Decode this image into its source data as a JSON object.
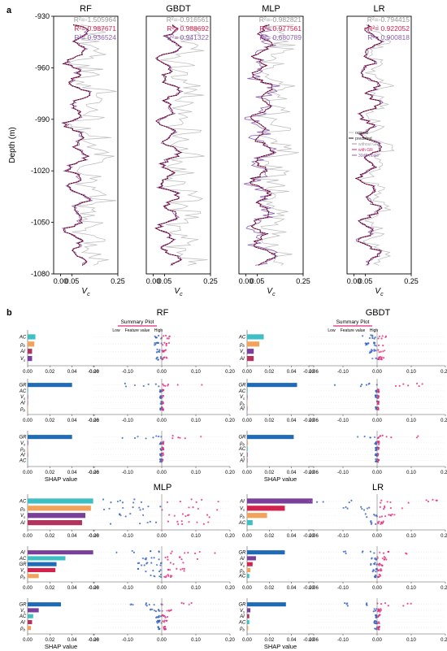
{
  "panel_labels": [
    "a",
    "b"
  ],
  "colors": {
    "original": "#c0c0c0",
    "predicted": "#111111",
    "without_gr": "#9a9a9a",
    "with_gr": "#d7266c",
    "noise": "#8a5fb0",
    "r2_gray": "#9a9a9a",
    "r2_red": "#d2234f",
    "r2_purple": "#8a5fb0",
    "shap_teal": "#3dbfc4",
    "shap_orange": "#f2a25a",
    "shap_maroon": "#b0345e",
    "shap_purple": "#7a3f9a",
    "shap_blue": "#1f6bb5",
    "shap_red": "#d2234f",
    "shap_low": "#2f5fbf",
    "shap_high": "#e0287a"
  },
  "chart_data": [
    {
      "type": "line",
      "panel": "a",
      "ylabel": "Depth (m)",
      "xlabel": "V_c",
      "ylim": [
        -1080,
        -930
      ],
      "xlim": [
        -0.03,
        0.25
      ],
      "yticks": [
        -930,
        -960,
        -990,
        -1020,
        -1050,
        -1080
      ],
      "xticks": [
        0.0,
        0.05,
        0.25
      ],
      "xtick_labels": [
        "0.00",
        "0.05",
        "0.25"
      ],
      "legend": {
        "placement": "right of LR panel",
        "entries": [
          "original",
          "predicted",
          "without GR",
          "with GR",
          "30dB noise"
        ]
      },
      "subplots": [
        {
          "title": "RF",
          "r2": [
            "R²=-1.505964",
            "R²= 0.987671",
            "R²= 0.936524"
          ]
        },
        {
          "title": "GBDT",
          "r2": [
            "R²=-0.916561",
            "R²= 0.988692",
            "R²= 0.941322"
          ]
        },
        {
          "title": "MLP",
          "r2": [
            "R²=-0.982821",
            "R²= 0.977561",
            "R²= 0.680789"
          ]
        },
        {
          "title": "LR",
          "r2": [
            "R²=-0.794415",
            "R²= 0.922052",
            "R²= 0.900818"
          ]
        }
      ]
    },
    {
      "type": "bar",
      "panel": "b",
      "xlabel": "SHAP value",
      "summary_title": "Summary Plot",
      "summary_axis": [
        "Low",
        "Feature value",
        "High"
      ],
      "bar_xticks": [
        "0.00",
        "0.02",
        "0.04",
        "0.06"
      ],
      "beeswarm_xticks": [
        "-0.20",
        "-0.10",
        "0.00",
        "0.10",
        "0.20"
      ],
      "models": [
        {
          "title": "RF",
          "rows": [
            {
              "features": [
                "AC",
                "ρ_b",
                "AI",
                "V_s"
              ],
              "values": [
                0.007,
                0.006,
                0.004,
                0.004
              ],
              "colors": [
                "shap_teal",
                "shap_orange",
                "shap_maroon",
                "shap_purple"
              ]
            },
            {
              "features": [
                "GR",
                "AC",
                "V_s",
                "AI",
                "ρ_b"
              ],
              "values": [
                0.04,
                0.0005,
                0.0004,
                0.0003,
                0.0003
              ],
              "colors": [
                "shap_blue",
                "shap_teal",
                "shap_purple",
                "shap_maroon",
                "shap_orange"
              ]
            },
            {
              "features": [
                "GR",
                "V_s",
                "ρ_b",
                "AI",
                "AC"
              ],
              "values": [
                0.04,
                0.0005,
                0.0004,
                0.0003,
                0.0003
              ],
              "colors": [
                "shap_blue",
                "shap_purple",
                "shap_orange",
                "shap_maroon",
                "shap_teal"
              ]
            }
          ]
        },
        {
          "title": "GBDT",
          "rows": [
            {
              "features": [
                "AC",
                "ρ_b",
                "V_s",
                "AI"
              ],
              "values": [
                0.015,
                0.011,
                0.006,
                0.006
              ],
              "colors": [
                "shap_teal",
                "shap_orange",
                "shap_purple",
                "shap_maroon"
              ]
            },
            {
              "features": [
                "GR",
                "AC",
                "V_s",
                "ρ_b",
                "AI"
              ],
              "values": [
                0.045,
                0.0005,
                0.0004,
                0.0003,
                0.0003
              ],
              "colors": [
                "shap_blue",
                "shap_teal",
                "shap_purple",
                "shap_orange",
                "shap_maroon"
              ]
            },
            {
              "features": [
                "GR",
                "ρ_b",
                "AC",
                "V_s",
                "AI"
              ],
              "values": [
                0.042,
                0.0008,
                0.0006,
                0.0005,
                0.0004
              ],
              "colors": [
                "shap_blue",
                "shap_orange",
                "shap_teal",
                "shap_purple",
                "shap_maroon"
              ]
            }
          ]
        },
        {
          "title": "MLP",
          "rows": [
            {
              "features": [
                "AC",
                "ρ_b",
                "V_s",
                "AI"
              ],
              "values": [
                0.059,
                0.057,
                0.052,
                0.049
              ],
              "colors": [
                "shap_teal",
                "shap_orange",
                "shap_purple",
                "shap_maroon"
              ]
            },
            {
              "features": [
                "AI",
                "AC",
                "GR",
                "V_s",
                "ρ_b"
              ],
              "values": [
                0.059,
                0.034,
                0.026,
                0.025,
                0.01
              ],
              "colors": [
                "shap_purple",
                "shap_teal",
                "shap_blue",
                "shap_red",
                "shap_orange"
              ]
            },
            {
              "features": [
                "GR",
                "V_s",
                "AC",
                "AI",
                "ρ_b"
              ],
              "values": [
                0.03,
                0.01,
                0.005,
                0.004,
                0.003
              ],
              "colors": [
                "shap_blue",
                "shap_purple",
                "shap_teal",
                "shap_maroon",
                "shap_orange"
              ]
            }
          ]
        },
        {
          "title": "LR",
          "rows": [
            {
              "features": [
                "AI",
                "V_s",
                "ρ_b",
                "AC"
              ],
              "values": [
                0.059,
                0.034,
                0.018,
                0.005
              ],
              "colors": [
                "shap_purple",
                "shap_red",
                "shap_orange",
                "shap_teal"
              ]
            },
            {
              "features": [
                "GR",
                "AI",
                "V_s",
                "ρ_b",
                "AC"
              ],
              "values": [
                0.034,
                0.008,
                0.005,
                0.003,
                0.002
              ],
              "colors": [
                "shap_blue",
                "shap_purple",
                "shap_red",
                "shap_orange",
                "shap_teal"
              ]
            },
            {
              "features": [
                "GR",
                "V_s",
                "AI",
                "AC",
                "ρ_b"
              ],
              "values": [
                0.035,
                0.003,
                0.002,
                0.002,
                0.001
              ],
              "colors": [
                "shap_blue",
                "shap_purple",
                "shap_maroon",
                "shap_teal",
                "shap_orange"
              ]
            }
          ]
        }
      ]
    }
  ]
}
